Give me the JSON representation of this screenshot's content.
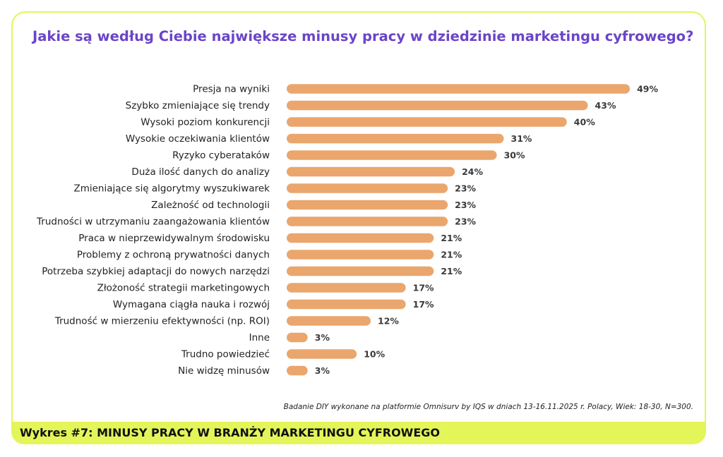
{
  "header": {
    "title": "Jakie są według Ciebie największe minusy pracy w dziedzinie marketingu cyfrowego?"
  },
  "footer": {
    "note": "Badanie DIY wykonane na platformie Omnisurv by IQS w dniach 13-16.11.2025 r.  Polacy, Wiek: 18-30, N=300.",
    "caption": "Wykres #7: MINUSY PRACY W BRANŻY MARKETINGU CYFROWEGO"
  },
  "colors": {
    "bar": "#eaa66d",
    "title": "#6b44c8",
    "accent": "#e4f55a"
  },
  "chart_data": {
    "type": "bar",
    "orientation": "horizontal",
    "categories": [
      "Presja na wyniki",
      "Szybko zmieniające się trendy",
      "Wysoki poziom konkurencji",
      "Wysokie oczekiwania klientów",
      "Ryzyko cyberataków",
      "Duża ilość danych do analizy",
      "Zmieniające się algorytmy wyszukiwarek",
      "Zależność od technologii",
      "Trudności w utrzymaniu zaangażowania klientów",
      "Praca w nieprzewidywalnym środowisku",
      "Problemy z ochroną prywatności danych",
      "Potrzeba szybkiej adaptacji do nowych narzędzi",
      "Złożoność strategii marketingowych",
      "Wymagana ciągła nauka i rozwój",
      "Trudność w mierzeniu efektywności (np. ROI)",
      "Inne",
      "Trudno powiedzieć",
      "Nie widzę minusów"
    ],
    "values": [
      49,
      43,
      40,
      31,
      30,
      24,
      23,
      23,
      23,
      21,
      21,
      21,
      17,
      17,
      12,
      3,
      10,
      3
    ],
    "value_labels": [
      "49%",
      "43%",
      "40%",
      "31%",
      "30%",
      "24%",
      "23%",
      "23%",
      "23%",
      "21%",
      "21%",
      "21%",
      "17%",
      "17%",
      "12%",
      "3%",
      "10%",
      "3%"
    ],
    "xlim": [
      0,
      50
    ],
    "grid": false,
    "legend": "none"
  }
}
